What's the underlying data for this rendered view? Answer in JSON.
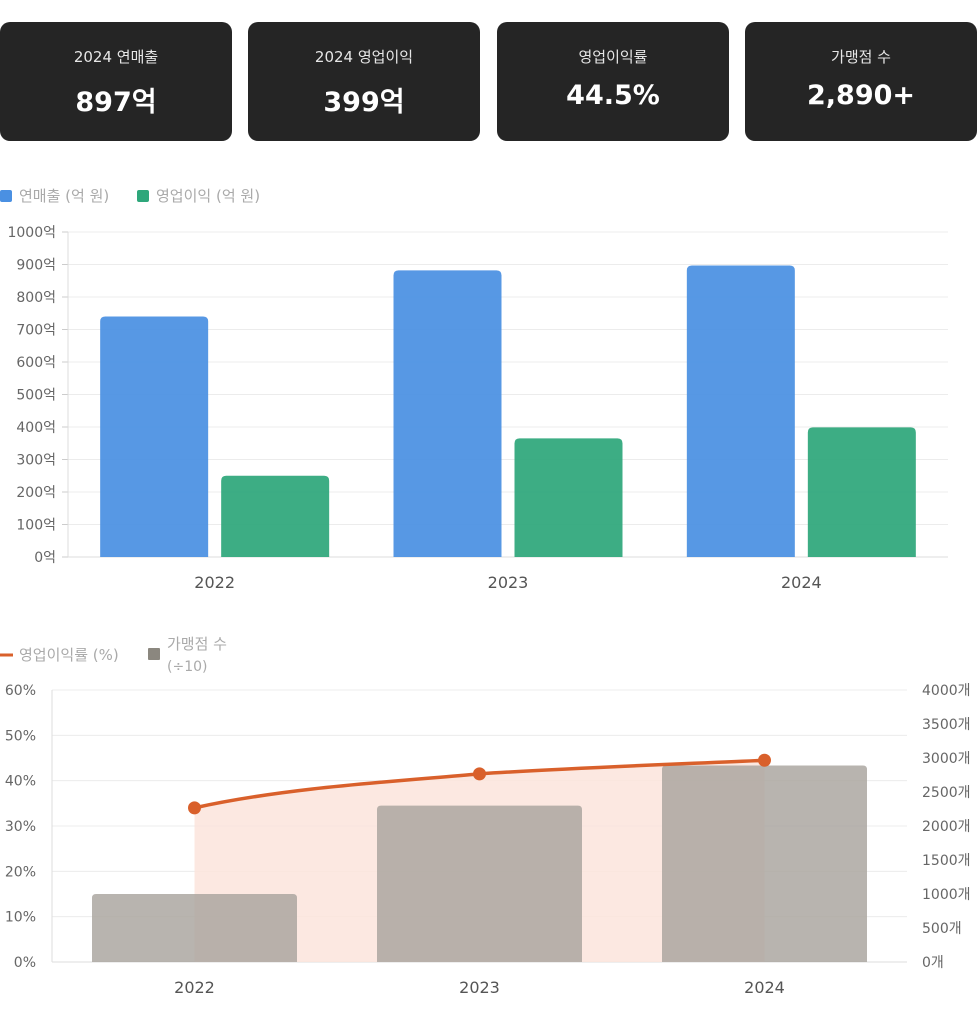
{
  "stats": [
    {
      "label": "2024 연매출",
      "value": "897억"
    },
    {
      "label": "2024 영업이익",
      "value": "399억"
    },
    {
      "label": "영업이익률",
      "value": "44.5%"
    },
    {
      "label": "가맹점 수",
      "value": "2,890+"
    }
  ],
  "chart_data": [
    {
      "type": "bar",
      "categories": [
        "2022",
        "2023",
        "2024"
      ],
      "series": [
        {
          "name": "연매출 (억 원)",
          "values": [
            740,
            882,
            897
          ],
          "color": "#4a90e2"
        },
        {
          "name": "영업이익 (억 원)",
          "values": [
            250,
            365,
            399
          ],
          "color": "#2ea77b"
        }
      ],
      "ylim": [
        0,
        1000
      ],
      "yticks": [
        "0억",
        "100억",
        "200억",
        "300억",
        "400억",
        "500억",
        "600억",
        "700억",
        "800억",
        "900억",
        "1000억"
      ],
      "grid": true,
      "legend": "top-left"
    },
    {
      "type": "bar+line",
      "categories": [
        "2022",
        "2023",
        "2024"
      ],
      "series": [
        {
          "name": "영업이익률 (%)",
          "type": "line",
          "axis": "left",
          "values": [
            34,
            41.5,
            44.5
          ],
          "color": "#d9602b",
          "fill": "#fbe4dc"
        },
        {
          "name": "가맹점 수",
          "name_line2": "(÷10)",
          "type": "bar",
          "axis": "right",
          "values": [
            1000,
            2300,
            2890
          ],
          "color": "#a8a49e"
        }
      ],
      "ylim_left": [
        0,
        60
      ],
      "ylim_right": [
        0,
        4000
      ],
      "yticks_left": [
        "0%",
        "10%",
        "20%",
        "30%",
        "40%",
        "50%",
        "60%"
      ],
      "yticks_right": [
        "0개",
        "500개",
        "1000개",
        "1500개",
        "2000개",
        "2500개",
        "3000개",
        "3500개",
        "4000개"
      ],
      "grid": true,
      "legend": "top-left"
    }
  ]
}
